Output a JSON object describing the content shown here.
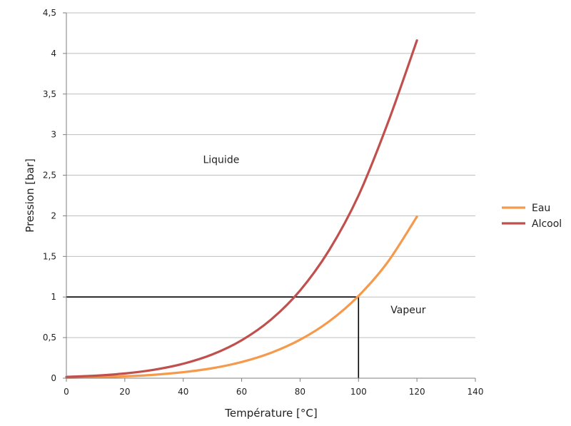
{
  "chart_data": {
    "type": "line",
    "xlabel": "Température  [°C]",
    "ylabel": "Pression [bar]",
    "xlim": [
      0,
      140
    ],
    "ylim": [
      0,
      4.5
    ],
    "xticks": [
      0,
      20,
      40,
      60,
      80,
      100,
      120,
      140
    ],
    "yticks": [
      0,
      0.5,
      1,
      1.5,
      2,
      2.5,
      3,
      3.5,
      4,
      4.5
    ],
    "xtick_labels": [
      "0",
      "20",
      "40",
      "60",
      "80",
      "100",
      "120",
      "140"
    ],
    "ytick_labels": [
      "0",
      "0,5",
      "1",
      "1,5",
      "2",
      "2,5",
      "3",
      "3,5",
      "4",
      "4,5"
    ],
    "grid": "horizontal",
    "legend_position": "right",
    "series": [
      {
        "name": "Eau",
        "color": "#f59a4c",
        "x": [
          0,
          10,
          20,
          30,
          40,
          50,
          60,
          70,
          80,
          90,
          100,
          110,
          120
        ],
        "y": [
          0.006,
          0.012,
          0.023,
          0.042,
          0.074,
          0.123,
          0.199,
          0.312,
          0.474,
          0.701,
          1.013,
          1.43,
          1.99
        ]
      },
      {
        "name": "Alcool",
        "color": "#c0504d",
        "x": [
          0,
          10,
          20,
          30,
          40,
          50,
          60,
          70,
          80,
          90,
          100,
          110,
          120
        ],
        "y": [
          0.016,
          0.031,
          0.058,
          0.104,
          0.178,
          0.293,
          0.467,
          0.72,
          1.08,
          1.58,
          2.25,
          3.14,
          4.16
        ]
      }
    ],
    "reference_lines": {
      "horizontal_y": 1,
      "horizontal_x_end": 100,
      "vertical_x": 100,
      "vertical_y_end": 1,
      "color": "#000000"
    },
    "annotations": [
      {
        "text": "Liquide",
        "x": 53,
        "y": 2.65
      },
      {
        "text": "Vapeur",
        "x": 117,
        "y": 0.8
      }
    ]
  }
}
